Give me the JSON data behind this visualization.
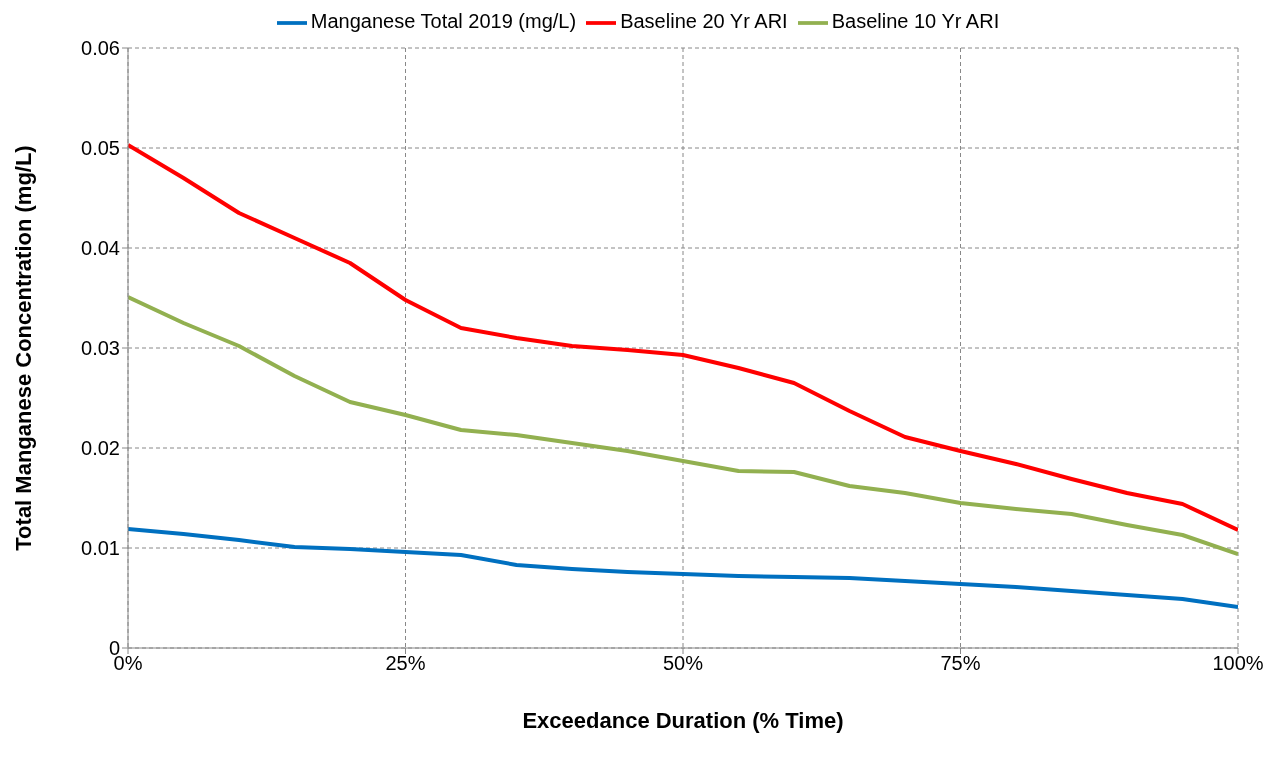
{
  "chart_data": {
    "type": "line",
    "xlabel": "Exceedance Duration (% Time)",
    "ylabel": "Total Manganese Concentration (mg/L)",
    "x": [
      0,
      5,
      10,
      15,
      20,
      25,
      30,
      35,
      40,
      45,
      50,
      55,
      60,
      65,
      70,
      75,
      80,
      85,
      90,
      95,
      100
    ],
    "series": [
      {
        "name": "Manganese Total 2019 (mg/L)",
        "color": "#0070c0",
        "values": [
          0.0119,
          0.0114,
          0.0108,
          0.0101,
          0.0099,
          0.0096,
          0.0093,
          0.0083,
          0.0079,
          0.0076,
          0.0074,
          0.0072,
          0.0071,
          0.007,
          0.0067,
          0.0064,
          0.0061,
          0.0057,
          0.0053,
          0.0049,
          0.0041
        ]
      },
      {
        "name": "Baseline 20 Yr ARI",
        "color": "#ff0000",
        "values": [
          0.0503,
          0.047,
          0.0435,
          0.041,
          0.0385,
          0.0348,
          0.032,
          0.031,
          0.0302,
          0.0298,
          0.0293,
          0.028,
          0.0265,
          0.0237,
          0.0211,
          0.0197,
          0.0184,
          0.0169,
          0.0155,
          0.0144,
          0.0118
        ]
      },
      {
        "name": "Baseline 10 Yr ARI",
        "color": "#92b050",
        "values": [
          0.0351,
          0.0325,
          0.0302,
          0.0272,
          0.0246,
          0.0233,
          0.0218,
          0.0213,
          0.0205,
          0.0197,
          0.0187,
          0.0177,
          0.0176,
          0.0162,
          0.0155,
          0.0145,
          0.0139,
          0.0134,
          0.0123,
          0.0113,
          0.0094
        ]
      }
    ],
    "xlim": [
      0,
      100
    ],
    "xticks": [
      {
        "value": 0,
        "label": "0%"
      },
      {
        "value": 25,
        "label": "25%"
      },
      {
        "value": 50,
        "label": "50%"
      },
      {
        "value": 75,
        "label": "75%"
      },
      {
        "value": 100,
        "label": "100%"
      }
    ],
    "ylim": [
      0,
      0.06
    ],
    "yticks": [
      0,
      0.01,
      0.02,
      0.03,
      0.04,
      0.05,
      0.06
    ],
    "grid": true,
    "legend": "top",
    "marker": "none",
    "line_style": "solid"
  }
}
